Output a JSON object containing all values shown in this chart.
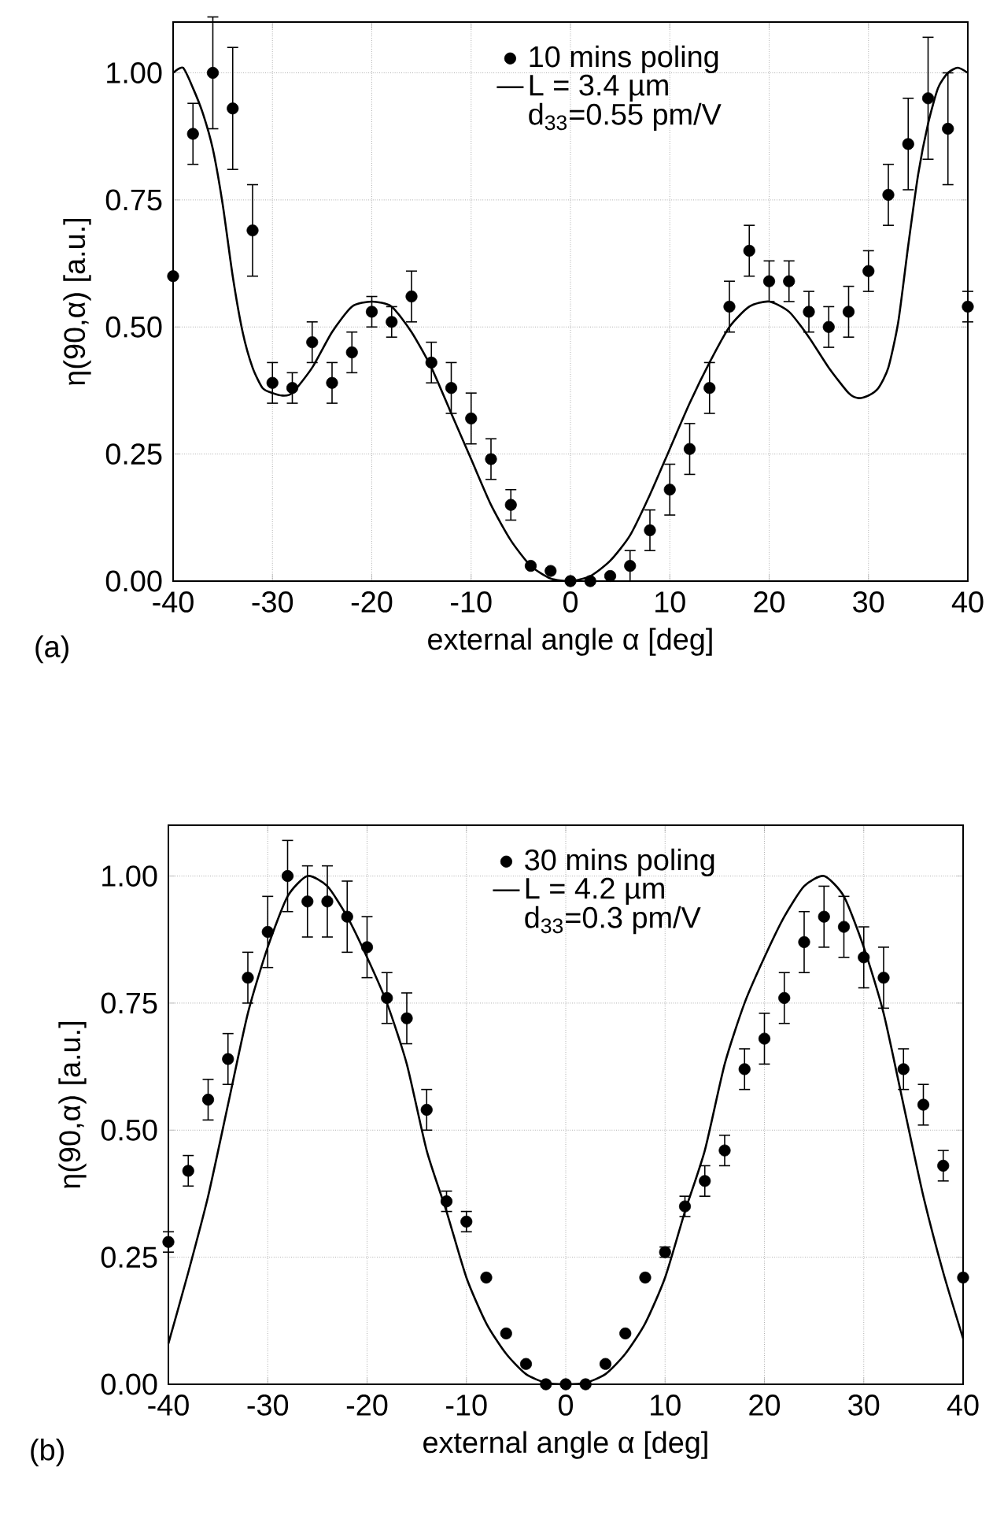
{
  "chart_data": [
    {
      "type": "scatter",
      "xlabel": "external angle α [deg]",
      "ylabel": "η(90,α) [a.u.]",
      "xlim": [
        -40,
        40
      ],
      "ylim": [
        0,
        1.1
      ],
      "xticks": [
        -40,
        -30,
        -20,
        -10,
        0,
        10,
        20,
        30,
        40
      ],
      "yticks": [
        {
          "value": 0,
          "label": "0.00"
        },
        {
          "value": 0.25,
          "label": "0.25"
        },
        {
          "value": 0.5,
          "label": "0.50"
        },
        {
          "value": 0.75,
          "label": "0.75"
        },
        {
          "value": 1,
          "label": "1.00"
        }
      ],
      "grid": true,
      "legend": "top",
      "marker": "circle",
      "annotations": [
        "d$_{33}$=0.55 pm/V",
        "(a)"
      ],
      "x": [
        -40,
        -38,
        -36,
        -34,
        -32,
        -30,
        -28,
        -26,
        -24,
        -22,
        -20,
        -18,
        -16,
        -14,
        -12,
        -10,
        -8,
        -6,
        -4,
        -2,
        0,
        2,
        4,
        6,
        8,
        10,
        12,
        14,
        16,
        18,
        20,
        22,
        24,
        26,
        28,
        30,
        32,
        34,
        36,
        38,
        40
      ],
      "series": [
        {
          "name": "10 mins poling",
          "color": "#000000",
          "values": [
            0.6,
            0.88,
            1.0,
            0.93,
            0.69,
            0.39,
            0.38,
            0.47,
            0.39,
            0.45,
            0.53,
            0.51,
            0.56,
            0.43,
            0.38,
            0.32,
            0.24,
            0.15,
            0.03,
            0.02,
            0.0,
            0.0,
            0.01,
            0.03,
            0.1,
            0.18,
            0.26,
            0.38,
            0.54,
            0.65,
            0.59,
            0.59,
            0.53,
            0.5,
            0.53,
            0.61,
            0.76,
            0.86,
            0.95,
            0.89,
            0.54
          ],
          "errors": [
            null,
            0.06,
            0.11,
            0.12,
            0.09,
            0.04,
            0.03,
            0.04,
            0.04,
            0.04,
            0.03,
            0.03,
            0.05,
            0.04,
            0.05,
            0.05,
            0.04,
            0.03,
            null,
            null,
            null,
            null,
            null,
            0.03,
            0.04,
            0.05,
            0.05,
            0.05,
            0.05,
            0.05,
            0.04,
            0.04,
            0.04,
            0.04,
            0.05,
            0.04,
            0.06,
            0.09,
            0.12,
            0.11,
            0.03
          ]
        },
        {
          "name": "L = 3.4 µm",
          "type": "line",
          "marker": "none",
          "line_style": "solid",
          "color": "#000000",
          "x": [
            -40,
            -39,
            -38,
            -37,
            -36,
            -35,
            -34,
            -33,
            -32,
            -31,
            -30,
            -29,
            -28,
            -26,
            -24,
            -22,
            -20,
            -18,
            -16,
            -14,
            -12,
            -10,
            -8,
            -6,
            -4,
            -2,
            0,
            2,
            4,
            6,
            8,
            10,
            12,
            14,
            16,
            18,
            20,
            22,
            24,
            26,
            28,
            29,
            30,
            31,
            32,
            33,
            34,
            35,
            36,
            37,
            38,
            39,
            40
          ],
          "values": [
            1.0,
            1.01,
            0.97,
            0.92,
            0.85,
            0.74,
            0.6,
            0.49,
            0.42,
            0.38,
            0.37,
            0.365,
            0.37,
            0.42,
            0.49,
            0.54,
            0.55,
            0.54,
            0.49,
            0.42,
            0.33,
            0.24,
            0.15,
            0.08,
            0.03,
            0.005,
            0.0,
            0.01,
            0.04,
            0.09,
            0.17,
            0.26,
            0.35,
            0.43,
            0.5,
            0.54,
            0.55,
            0.53,
            0.48,
            0.42,
            0.37,
            0.36,
            0.365,
            0.38,
            0.42,
            0.51,
            0.66,
            0.8,
            0.9,
            0.97,
            1.0,
            1.01,
            1.0
          ]
        }
      ]
    },
    {
      "type": "scatter",
      "xlabel": "external angle α [deg]",
      "ylabel": "η(90,α) [a.u.]",
      "xlim": [
        -40,
        40
      ],
      "ylim": [
        0,
        1.1
      ],
      "xticks": [
        -40,
        -30,
        -20,
        -10,
        0,
        10,
        20,
        30,
        40
      ],
      "yticks": [
        {
          "value": 0,
          "label": "0.00"
        },
        {
          "value": 0.25,
          "label": "0.25"
        },
        {
          "value": 0.5,
          "label": "0.50"
        },
        {
          "value": 0.75,
          "label": "0.75"
        },
        {
          "value": 1,
          "label": "1.00"
        }
      ],
      "grid": true,
      "legend": "top",
      "marker": "circle",
      "annotations": [
        "d$_{33}$=0.3 pm/V",
        "(b)"
      ],
      "x": [
        -40,
        -38,
        -36,
        -34,
        -32,
        -30,
        -28,
        -26,
        -24,
        -22,
        -20,
        -18,
        -16,
        -14,
        -12,
        -10,
        -8,
        -6,
        -4,
        -2,
        0,
        2,
        4,
        6,
        8,
        10,
        12,
        14,
        16,
        18,
        20,
        22,
        24,
        26,
        28,
        30,
        32,
        34,
        36,
        38,
        40
      ],
      "series": [
        {
          "name": "30 mins poling",
          "color": "#000000",
          "values": [
            0.28,
            0.42,
            0.56,
            0.64,
            0.8,
            0.89,
            1.0,
            0.95,
            0.95,
            0.92,
            0.86,
            0.76,
            0.72,
            0.54,
            0.36,
            0.32,
            0.21,
            0.1,
            0.04,
            0.0,
            0.0,
            0.0,
            0.04,
            0.1,
            0.21,
            0.26,
            0.35,
            0.4,
            0.46,
            0.62,
            0.68,
            0.76,
            0.87,
            0.92,
            0.9,
            0.84,
            0.8,
            0.62,
            0.55,
            0.43,
            0.21
          ],
          "errors": [
            0.02,
            0.03,
            0.04,
            0.05,
            0.05,
            0.07,
            0.07,
            0.07,
            0.07,
            0.07,
            0.06,
            0.05,
            0.05,
            0.04,
            0.02,
            0.02,
            null,
            null,
            null,
            null,
            null,
            null,
            null,
            null,
            null,
            0.01,
            0.02,
            0.03,
            0.03,
            0.04,
            0.05,
            0.05,
            0.06,
            0.06,
            0.06,
            0.06,
            0.06,
            0.04,
            0.04,
            0.03,
            null
          ]
        },
        {
          "name": "L = 4.2 µm",
          "type": "line",
          "marker": "none",
          "line_style": "solid",
          "color": "#000000",
          "x": [
            -40,
            -38,
            -36,
            -34,
            -32,
            -30,
            -28,
            -26,
            -24,
            -22,
            -20,
            -18,
            -16,
            -14,
            -12,
            -10,
            -8,
            -6,
            -4,
            -2,
            0,
            2,
            4,
            6,
            8,
            10,
            12,
            14,
            16,
            18,
            20,
            22,
            24,
            26,
            28,
            30,
            32,
            34,
            36,
            38,
            40
          ],
          "values": [
            0.08,
            0.22,
            0.37,
            0.55,
            0.73,
            0.86,
            0.96,
            1.0,
            0.98,
            0.92,
            0.84,
            0.75,
            0.63,
            0.46,
            0.34,
            0.21,
            0.12,
            0.06,
            0.02,
            0.003,
            0.0,
            0.003,
            0.02,
            0.06,
            0.12,
            0.21,
            0.34,
            0.46,
            0.63,
            0.75,
            0.84,
            0.92,
            0.98,
            1.0,
            0.96,
            0.86,
            0.73,
            0.55,
            0.37,
            0.22,
            0.09
          ]
        }
      ]
    }
  ]
}
